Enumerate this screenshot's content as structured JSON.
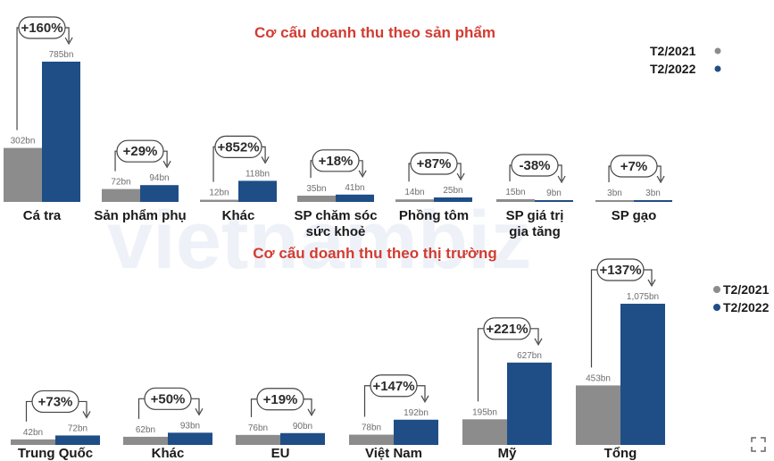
{
  "chart_data": [
    {
      "type": "bar",
      "title": "Cơ cấu doanh thu theo sản phẩm",
      "categories": [
        [
          "Cá tra"
        ],
        [
          "Sản phẩm phụ"
        ],
        [
          "Khác"
        ],
        [
          "SP chăm sóc",
          "sức khoẻ"
        ],
        [
          "Phồng tôm"
        ],
        [
          "SP giá trị",
          "gia tăng"
        ],
        [
          "SP gạo"
        ]
      ],
      "series": [
        {
          "name": "T2/2021",
          "color": "#8c8c8c",
          "values": [
            302,
            72,
            12,
            35,
            14,
            15,
            3
          ],
          "labels": [
            "302bn",
            "72bn",
            "12bn",
            "35bn",
            "14bn",
            "15bn",
            "3bn"
          ]
        },
        {
          "name": "T2/2022",
          "color": "#1f4e87",
          "values": [
            785,
            94,
            118,
            41,
            25,
            9,
            3
          ],
          "labels": [
            "785bn",
            "94bn",
            "118bn",
            "41bn",
            "25bn",
            "9bn",
            "3bn"
          ]
        }
      ],
      "changes": [
        "+160%",
        "+29%",
        "+852%",
        "+18%",
        "+87%",
        "-38%",
        "+7%"
      ],
      "legend_position": "top-right"
    },
    {
      "type": "bar",
      "title": "Cơ cấu doanh thu theo thị trường",
      "categories": [
        [
          "Trung Quốc"
        ],
        [
          "Khác"
        ],
        [
          "EU"
        ],
        [
          "Việt Nam"
        ],
        [
          "Mỹ"
        ],
        [
          "Tổng"
        ]
      ],
      "series": [
        {
          "name": "T2/2021",
          "color": "#8c8c8c",
          "values": [
            42,
            62,
            76,
            78,
            195,
            453
          ],
          "labels": [
            "42bn",
            "62bn",
            "76bn",
            "78bn",
            "195bn",
            "453bn"
          ]
        },
        {
          "name": "T2/2022",
          "color": "#1f4e87",
          "values": [
            72,
            93,
            90,
            192,
            627,
            1075
          ],
          "labels": [
            "72bn",
            "93bn",
            "90bn",
            "192bn",
            "627bn",
            "1,075bn"
          ]
        }
      ],
      "changes": [
        "+73%",
        "+50%",
        "+19%",
        "+147%",
        "+221%",
        "+137%"
      ],
      "legend_position": "right"
    }
  ],
  "colors": {
    "title": "#d23c32",
    "series_2021": "#8c8c8c",
    "series_2022": "#1f4e87"
  },
  "watermark": "vietnambiz",
  "corner_icon": "expand-icon"
}
